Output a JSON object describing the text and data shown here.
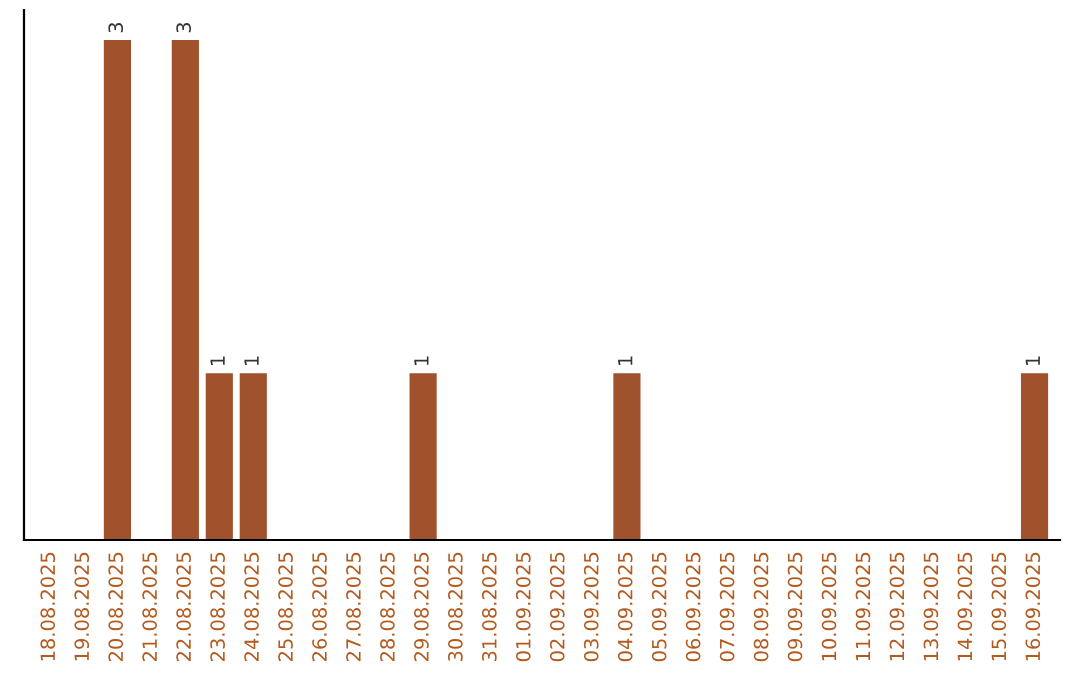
{
  "chart_data": {
    "type": "bar",
    "categories": [
      "18.08.2025",
      "19.08.2025",
      "20.08.2025",
      "21.08.2025",
      "22.08.2025",
      "23.08.2025",
      "24.08.2025",
      "25.08.2025",
      "26.08.2025",
      "27.08.2025",
      "28.08.2025",
      "29.08.2025",
      "30.08.2025",
      "31.08.2025",
      "01.09.2025",
      "02.09.2025",
      "03.09.2025",
      "04.09.2025",
      "05.09.2025",
      "06.09.2025",
      "07.09.2025",
      "08.09.2025",
      "09.09.2025",
      "10.09.2025",
      "11.09.2025",
      "12.09.2025",
      "13.09.2025",
      "14.09.2025",
      "15.09.2025",
      "16.09.2025"
    ],
    "values": [
      null,
      null,
      3,
      null,
      3,
      1,
      1,
      null,
      null,
      null,
      null,
      1,
      null,
      null,
      null,
      null,
      null,
      1,
      null,
      null,
      null,
      null,
      null,
      null,
      null,
      null,
      null,
      null,
      null,
      1
    ],
    "color": "#a0522d",
    "data_labels": true,
    "tick_labels": "x",
    "grid": false,
    "legend": false
  }
}
